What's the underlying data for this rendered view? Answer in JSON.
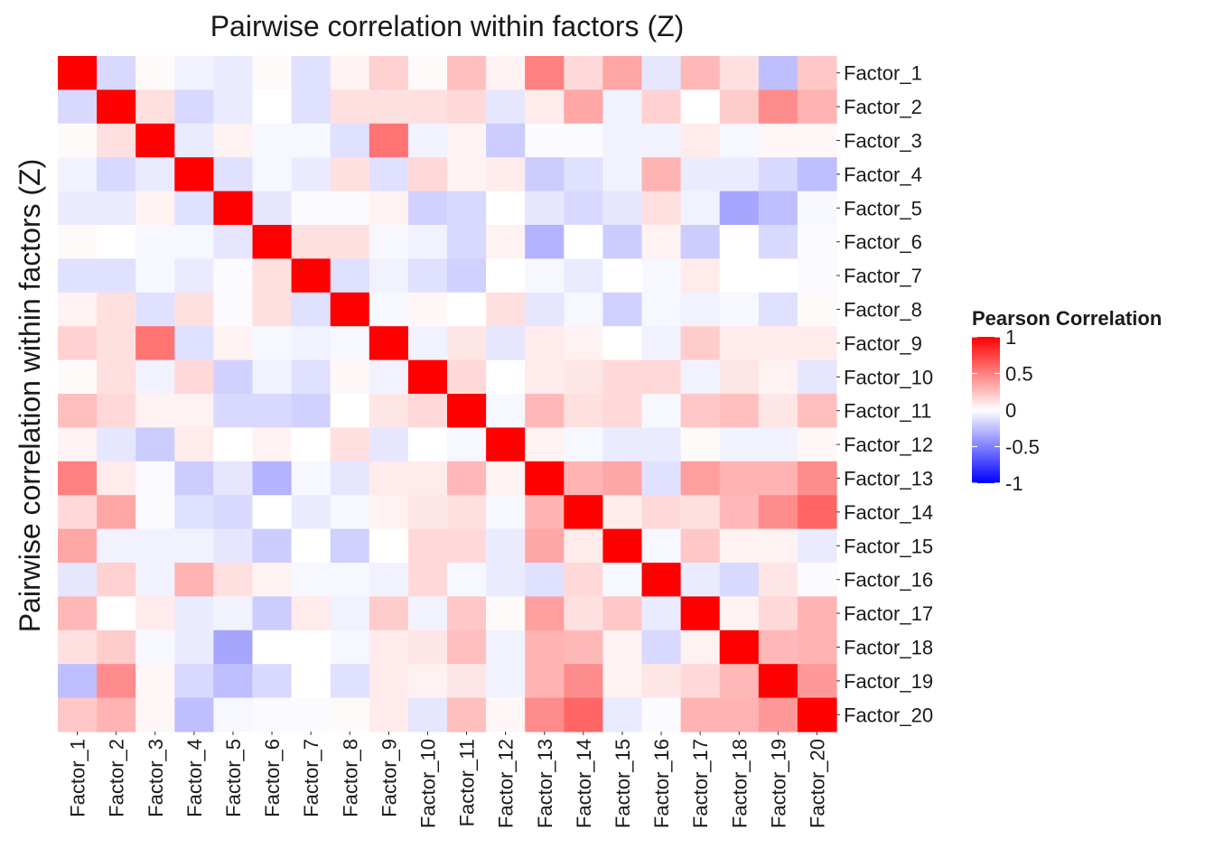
{
  "chart_data": {
    "type": "heatmap",
    "title": "Pairwise correlation within factors (Z)",
    "xlabel": "",
    "ylabel": "Pairwise correlation within factors (Z)",
    "rows": [
      "Factor_1",
      "Factor_2",
      "Factor_3",
      "Factor_4",
      "Factor_5",
      "Factor_6",
      "Factor_7",
      "Factor_8",
      "Factor_9",
      "Factor_10",
      "Factor_11",
      "Factor_12",
      "Factor_13",
      "Factor_14",
      "Factor_15",
      "Factor_16",
      "Factor_17",
      "Factor_18",
      "Factor_19",
      "Factor_20"
    ],
    "columns": [
      "Factor_1",
      "Factor_2",
      "Factor_3",
      "Factor_4",
      "Factor_5",
      "Factor_6",
      "Factor_7",
      "Factor_8",
      "Factor_9",
      "Factor_10",
      "Factor_11",
      "Factor_12",
      "Factor_13",
      "Factor_14",
      "Factor_15",
      "Factor_16",
      "Factor_17",
      "Factor_18",
      "Factor_19",
      "Factor_20"
    ],
    "values": [
      [
        1.0,
        -0.15,
        0.02,
        -0.05,
        -0.08,
        0.02,
        -0.12,
        0.05,
        0.18,
        0.02,
        0.25,
        0.05,
        0.5,
        0.15,
        0.35,
        -0.1,
        0.28,
        0.12,
        -0.25,
        0.22
      ],
      [
        -0.15,
        1.0,
        0.12,
        -0.15,
        -0.08,
        0.0,
        -0.12,
        0.12,
        0.12,
        0.12,
        0.15,
        -0.1,
        0.08,
        0.35,
        -0.05,
        0.18,
        0.0,
        0.2,
        0.45,
        0.3
      ],
      [
        0.02,
        0.12,
        1.0,
        -0.08,
        0.05,
        -0.03,
        -0.03,
        -0.12,
        0.55,
        -0.05,
        0.05,
        -0.2,
        -0.02,
        -0.02,
        -0.05,
        -0.05,
        0.08,
        -0.03,
        0.03,
        0.03
      ],
      [
        -0.05,
        -0.15,
        -0.08,
        1.0,
        -0.12,
        -0.03,
        -0.08,
        0.12,
        -0.12,
        0.15,
        0.05,
        0.08,
        -0.2,
        -0.12,
        -0.05,
        0.3,
        -0.08,
        -0.08,
        -0.15,
        -0.25
      ],
      [
        -0.08,
        -0.08,
        0.05,
        -0.12,
        1.0,
        -0.1,
        -0.02,
        -0.02,
        0.05,
        -0.18,
        -0.15,
        0.0,
        -0.1,
        -0.15,
        -0.1,
        0.12,
        -0.05,
        -0.35,
        -0.25,
        -0.03
      ],
      [
        0.02,
        0.0,
        -0.03,
        -0.03,
        -0.1,
        1.0,
        0.12,
        0.12,
        -0.03,
        -0.05,
        -0.15,
        0.05,
        -0.3,
        0.0,
        -0.2,
        0.05,
        -0.2,
        0.0,
        -0.15,
        -0.02
      ],
      [
        -0.12,
        -0.12,
        -0.03,
        -0.08,
        -0.02,
        0.12,
        1.0,
        -0.12,
        -0.05,
        -0.12,
        -0.18,
        0.0,
        -0.03,
        -0.08,
        0.0,
        -0.03,
        0.08,
        0.0,
        0.0,
        -0.02
      ],
      [
        0.05,
        0.12,
        -0.12,
        0.12,
        -0.02,
        0.12,
        -0.12,
        1.0,
        -0.03,
        0.03,
        0.0,
        0.12,
        -0.1,
        -0.03,
        -0.18,
        -0.03,
        -0.05,
        -0.03,
        -0.12,
        0.02
      ],
      [
        0.18,
        0.12,
        0.55,
        -0.12,
        0.05,
        -0.03,
        -0.05,
        -0.03,
        1.0,
        -0.05,
        0.1,
        -0.1,
        0.08,
        0.05,
        0.0,
        -0.05,
        0.2,
        0.08,
        0.08,
        0.08
      ],
      [
        0.02,
        0.12,
        -0.05,
        0.15,
        -0.18,
        -0.05,
        -0.12,
        0.03,
        -0.05,
        1.0,
        0.15,
        0.0,
        0.08,
        0.1,
        0.15,
        0.15,
        -0.05,
        0.1,
        0.05,
        -0.1
      ],
      [
        0.25,
        0.15,
        0.05,
        0.05,
        -0.15,
        -0.15,
        -0.18,
        0.0,
        0.1,
        0.15,
        1.0,
        -0.03,
        0.28,
        0.12,
        0.15,
        -0.03,
        0.22,
        0.25,
        0.1,
        0.25
      ],
      [
        0.05,
        -0.1,
        -0.2,
        0.08,
        0.0,
        0.05,
        0.0,
        0.12,
        -0.1,
        0.0,
        -0.03,
        1.0,
        0.05,
        -0.03,
        -0.08,
        -0.08,
        0.02,
        -0.05,
        -0.05,
        0.03
      ],
      [
        0.5,
        0.08,
        -0.02,
        -0.2,
        -0.1,
        -0.3,
        -0.03,
        -0.1,
        0.08,
        0.08,
        0.28,
        0.05,
        1.0,
        0.3,
        0.35,
        -0.12,
        0.38,
        0.3,
        0.3,
        0.45
      ],
      [
        0.15,
        0.35,
        -0.02,
        -0.12,
        -0.15,
        0.0,
        -0.08,
        -0.03,
        0.05,
        0.1,
        0.12,
        -0.03,
        0.3,
        1.0,
        0.08,
        0.15,
        0.12,
        0.28,
        0.45,
        0.6
      ],
      [
        0.35,
        -0.05,
        -0.05,
        -0.05,
        -0.1,
        -0.2,
        0.0,
        -0.18,
        0.0,
        0.15,
        0.15,
        -0.08,
        0.35,
        0.08,
        1.0,
        -0.03,
        0.22,
        0.05,
        0.05,
        -0.08
      ],
      [
        -0.1,
        0.18,
        -0.05,
        0.3,
        0.12,
        0.05,
        -0.03,
        -0.03,
        -0.05,
        0.15,
        -0.03,
        -0.08,
        -0.12,
        0.15,
        -0.03,
        1.0,
        -0.08,
        -0.15,
        0.1,
        -0.02
      ],
      [
        0.28,
        0.0,
        0.08,
        -0.08,
        -0.05,
        -0.2,
        0.08,
        -0.05,
        0.2,
        -0.05,
        0.22,
        0.02,
        0.38,
        0.12,
        0.22,
        -0.08,
        1.0,
        0.05,
        0.15,
        0.3
      ],
      [
        0.12,
        0.2,
        -0.03,
        -0.08,
        -0.35,
        0.0,
        0.0,
        -0.03,
        0.08,
        0.1,
        0.25,
        -0.05,
        0.3,
        0.28,
        0.05,
        -0.15,
        0.05,
        1.0,
        0.28,
        0.3
      ],
      [
        -0.25,
        0.45,
        0.03,
        -0.15,
        -0.25,
        -0.15,
        0.0,
        -0.12,
        0.08,
        0.05,
        0.1,
        -0.05,
        0.3,
        0.45,
        0.05,
        0.1,
        0.15,
        0.28,
        1.0,
        0.4
      ],
      [
        0.22,
        0.3,
        0.03,
        -0.25,
        -0.03,
        -0.02,
        -0.02,
        0.02,
        0.08,
        -0.1,
        0.25,
        0.03,
        0.45,
        0.6,
        -0.08,
        -0.02,
        0.3,
        0.3,
        0.4,
        1.0
      ]
    ],
    "legend": {
      "title": "Pearson Correlation",
      "ticks": [
        1,
        0.5,
        0,
        -0.5,
        -1
      ],
      "tick_labels": [
        "1",
        "0.5",
        "0",
        "-0.5",
        "-1"
      ],
      "range": [
        -1,
        1
      ],
      "colors": {
        "low": "#0000ff",
        "mid": "#ffffff",
        "high": "#ff0000"
      },
      "position": "right"
    }
  }
}
